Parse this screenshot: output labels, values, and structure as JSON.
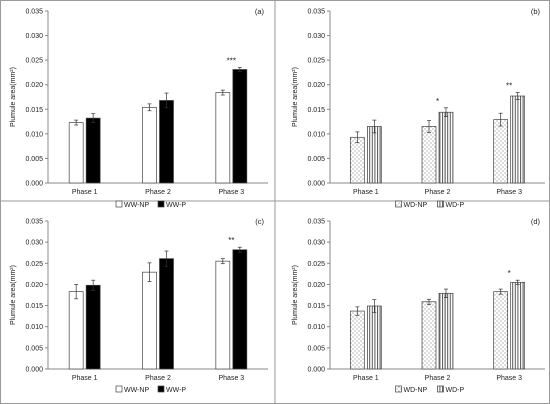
{
  "chart_data": [
    {
      "type": "bar",
      "panel_label": "(a)",
      "categories": [
        "Phase 1",
        "Phase 2",
        "Phase 3"
      ],
      "ylabel": "Plumule area(mm²)",
      "ylim": [
        0,
        0.035
      ],
      "yticks": [
        "0.000",
        "0.005",
        "0.010",
        "0.015",
        "0.020",
        "0.025",
        "0.030",
        "0.035"
      ],
      "grid": false,
      "legend_position": "bottom",
      "series": [
        {
          "name": "WW-NP",
          "values": [
            0.0123,
            0.0154,
            0.0184
          ],
          "errors": [
            0.0005,
            0.0007,
            0.0005
          ],
          "fill": "#ffffff",
          "pattern": "none"
        },
        {
          "name": "WW-P",
          "values": [
            0.0132,
            0.0168,
            0.0231
          ],
          "errors": [
            0.0009,
            0.0015,
            0.0004
          ],
          "fill": "#000000",
          "pattern": "none"
        }
      ],
      "annotations": [
        {
          "category": 2,
          "text": "***"
        }
      ]
    },
    {
      "type": "bar",
      "panel_label": "(b)",
      "categories": [
        "Phase 1",
        "Phase 2",
        "Phase 3"
      ],
      "ylabel": "Plumule area(mm²)",
      "ylim": [
        0,
        0.035
      ],
      "yticks": [
        "0.000",
        "0.005",
        "0.010",
        "0.015",
        "0.020",
        "0.025",
        "0.030",
        "0.035"
      ],
      "grid": false,
      "legend_position": "bottom",
      "series": [
        {
          "name": "WD-NP",
          "values": [
            0.0093,
            0.0115,
            0.0129
          ],
          "errors": [
            0.0011,
            0.0012,
            0.0013
          ],
          "fill": "#ffffff",
          "pattern": "dots"
        },
        {
          "name": "WD-P",
          "values": [
            0.0115,
            0.0144,
            0.0177
          ],
          "errors": [
            0.0013,
            0.0009,
            0.0007
          ],
          "fill": "#ffffff",
          "pattern": "vlines"
        }
      ],
      "annotations": [
        {
          "category": 1,
          "text": "*"
        },
        {
          "category": 2,
          "text": "**"
        }
      ]
    },
    {
      "type": "bar",
      "panel_label": "(c)",
      "categories": [
        "Phase 1",
        "Phase 2",
        "Phase 3"
      ],
      "ylabel": "Plumule area(mm²)",
      "ylim": [
        0,
        0.035
      ],
      "yticks": [
        "0.000",
        "0.005",
        "0.010",
        "0.015",
        "0.020",
        "0.025",
        "0.030",
        "0.035"
      ],
      "grid": false,
      "legend_position": "bottom",
      "series": [
        {
          "name": "WW-NP",
          "values": [
            0.0183,
            0.0229,
            0.0255
          ],
          "errors": [
            0.0017,
            0.0022,
            0.0006
          ],
          "fill": "#ffffff",
          "pattern": "none"
        },
        {
          "name": "WW-P",
          "values": [
            0.0198,
            0.0261,
            0.0282
          ],
          "errors": [
            0.0012,
            0.0018,
            0.0006
          ],
          "fill": "#000000",
          "pattern": "none"
        }
      ],
      "annotations": [
        {
          "category": 2,
          "text": "**"
        }
      ]
    },
    {
      "type": "bar",
      "panel_label": "(d)",
      "categories": [
        "Phase 1",
        "Phase 2",
        "Phase 3"
      ],
      "ylabel": "Plumule area(mm²)",
      "ylim": [
        0,
        0.035
      ],
      "yticks": [
        "0.000",
        "0.005",
        "0.010",
        "0.015",
        "0.020",
        "0.025",
        "0.030",
        "0.035"
      ],
      "grid": false,
      "legend_position": "bottom",
      "series": [
        {
          "name": "WD-NP",
          "values": [
            0.0137,
            0.0159,
            0.0183
          ],
          "errors": [
            0.001,
            0.0006,
            0.0006
          ],
          "fill": "#ffffff",
          "pattern": "dots"
        },
        {
          "name": "WD-P",
          "values": [
            0.0149,
            0.0179,
            0.0205
          ],
          "errors": [
            0.0015,
            0.001,
            0.0005
          ],
          "fill": "#ffffff",
          "pattern": "vlines"
        }
      ],
      "annotations": [
        {
          "category": 2,
          "text": "*"
        }
      ]
    }
  ]
}
